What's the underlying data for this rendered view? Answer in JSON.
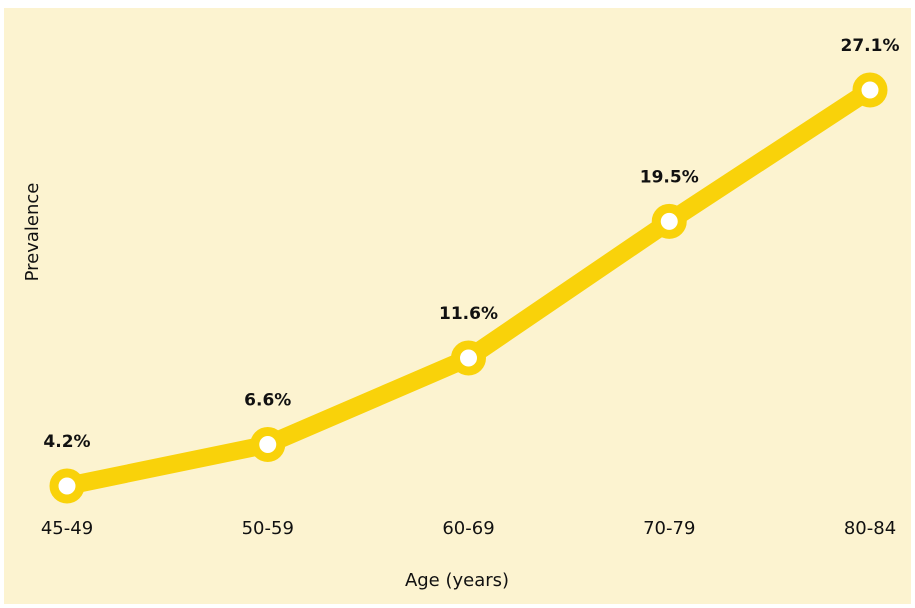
{
  "chart_data": {
    "type": "line",
    "categories": [
      "45-49",
      "50-59",
      "60-69",
      "70-79",
      "80-84"
    ],
    "series": [
      {
        "name": "Prevalence",
        "color": "#f9d20a",
        "values": [
          4.2,
          6.6,
          11.6,
          19.5,
          27.1
        ],
        "value_labels": [
          "4.2%",
          "6.6%",
          "11.6%",
          "19.5%",
          "27.1%"
        ]
      }
    ],
    "ylabel": "Prevalence",
    "xlabel": "Age (years)",
    "grid": false
  }
}
